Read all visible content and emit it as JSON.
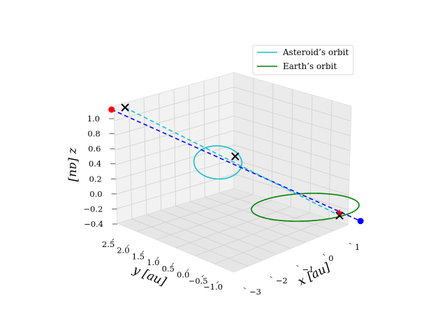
{
  "chart_data": {
    "type": "line",
    "title": "",
    "xlabel": "x [au]",
    "ylabel": "y [au]",
    "zlabel": "z [au]",
    "xlim": [
      -3,
      1.2
    ],
    "ylim": [
      -1.2,
      2.6
    ],
    "zlim": [
      -0.4,
      1.1
    ],
    "x_ticks": [
      "−3",
      "−2",
      "−1",
      "0",
      "1"
    ],
    "y_ticks": [
      "−1.0",
      "−0.5",
      "0.0",
      "0.5",
      "1.0",
      "1.5",
      "2.0",
      "2.5"
    ],
    "z_ticks": [
      "−0.4",
      "−0.2",
      "0.0",
      "0.2",
      "0.4",
      "0.6",
      "0.8",
      "1.0"
    ],
    "grid": true,
    "legend_location": "top-right",
    "series": [
      {
        "name": "Asteroid’s orbit",
        "color": "#17becf",
        "center": [
          -1.45,
          0.85,
          0.55
        ],
        "a": [
          1.9,
          1.9,
          0.7
        ],
        "b": [
          0.35,
          -0.28,
          0.0
        ]
      },
      {
        "name": "Earth’s orbit",
        "color": "#008000",
        "center": [
          0,
          0,
          0
        ],
        "a": [
          1,
          0,
          0
        ],
        "b": [
          0,
          1,
          0
        ]
      }
    ],
    "dashed_lines": [
      {
        "color": "#0000ff",
        "from": [
          -3.2,
          1.9,
          1.2
        ],
        "to": [
          0.55,
          -0.9,
          -0.25
        ]
      },
      {
        "color": "#17becf",
        "from": [
          -3.3,
          1.45,
          1.15
        ],
        "to": [
          0.35,
          -0.55,
          -0.15
        ]
      }
    ],
    "markers": [
      {
        "kind": "dot",
        "color": "#ff0000",
        "point": [
          -3.2,
          1.9,
          1.2
        ]
      },
      {
        "kind": "dot",
        "color": "#0000ff",
        "point": [
          0.55,
          -0.9,
          -0.25
        ]
      },
      {
        "kind": "x",
        "color": "#000000",
        "point": [
          -3.3,
          1.45,
          1.15
        ]
      },
      {
        "kind": "x",
        "color": "#000000",
        "point": [
          -1.5,
          0.35,
          0.55
        ]
      },
      {
        "kind": "x",
        "color": "#000000",
        "point": [
          0.35,
          -0.55,
          -0.15
        ]
      },
      {
        "kind": "star",
        "color": "#ff0000",
        "point": [
          0.4,
          -0.5,
          -0.1
        ]
      }
    ]
  }
}
